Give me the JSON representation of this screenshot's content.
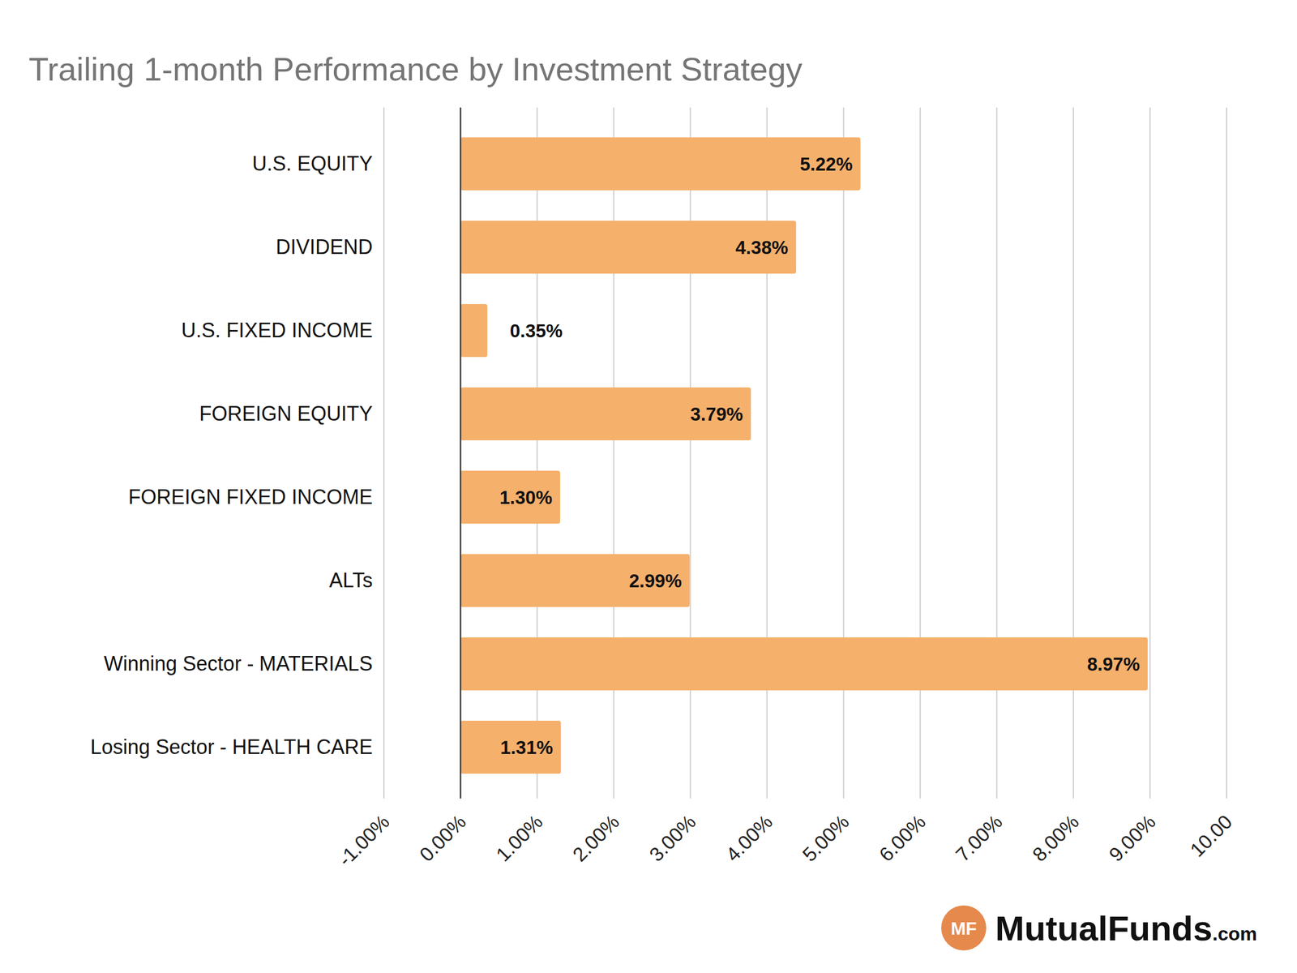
{
  "chart_data": {
    "type": "bar",
    "orientation": "horizontal",
    "title": "Trailing 1-month Performance by Investment Strategy",
    "categories": [
      "U.S. EQUITY",
      "DIVIDEND",
      "U.S. FIXED INCOME",
      "FOREIGN EQUITY",
      "FOREIGN FIXED INCOME",
      "ALTs",
      "Winning Sector - MATERIALS",
      "Losing Sector - HEALTH CARE"
    ],
    "values": [
      5.22,
      4.38,
      0.35,
      3.79,
      1.3,
      2.99,
      8.97,
      1.31
    ],
    "value_labels": [
      "5.22%",
      "4.38%",
      "0.35%",
      "3.79%",
      "1.30%",
      "2.99%",
      "8.97%",
      "1.31%"
    ],
    "color": "#f5b06b",
    "data_labels": true,
    "grid": true,
    "xlim": [
      -1,
      10
    ],
    "xticks": [
      {
        "value": -1,
        "label": "-1.00%"
      },
      {
        "value": 0,
        "label": "0.00%"
      },
      {
        "value": 1,
        "label": "1.00%"
      },
      {
        "value": 2,
        "label": "2.00%"
      },
      {
        "value": 3,
        "label": "3.00%"
      },
      {
        "value": 4,
        "label": "4.00%"
      },
      {
        "value": 5,
        "label": "5.00%"
      },
      {
        "value": 6,
        "label": "6.00%"
      },
      {
        "value": 7,
        "label": "7.00%"
      },
      {
        "value": 8,
        "label": "8.00%"
      },
      {
        "value": 9,
        "label": "9.00%"
      },
      {
        "value": 10,
        "label": "10.00"
      }
    ],
    "annotations": [
      "MF",
      "MutualFunds",
      ".com"
    ]
  }
}
